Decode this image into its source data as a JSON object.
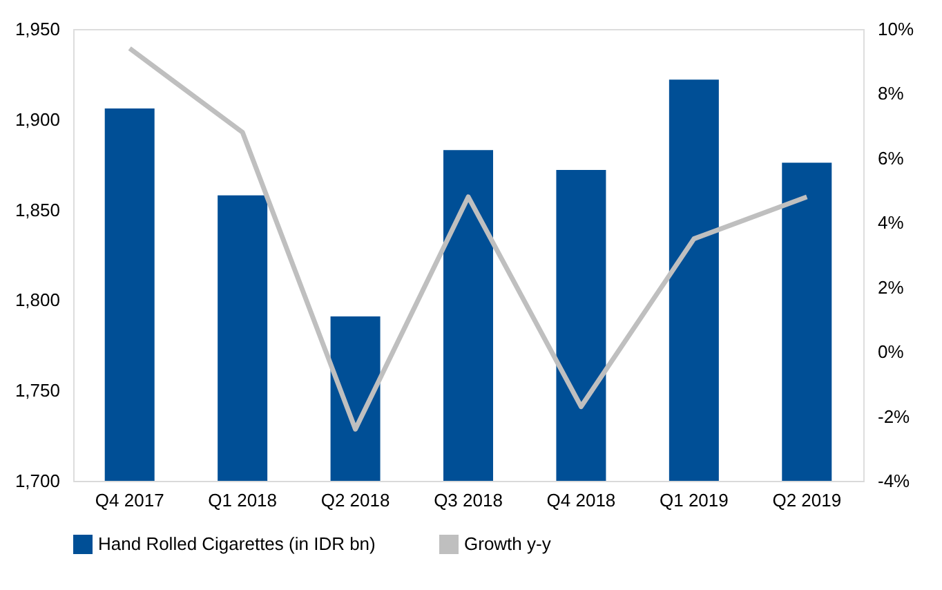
{
  "chart_data": {
    "type": "bar",
    "categories": [
      "Q4 2017",
      "Q1 2018",
      "Q2 2018",
      "Q3 2018",
      "Q4 2018",
      "Q1 2019",
      "Q2 2019"
    ],
    "series": [
      {
        "name": "Hand Rolled Cigarettes (in IDR bn)",
        "color": "#004f96",
        "values": [
          1906,
          1858,
          1791,
          1883,
          1872,
          1922,
          1876
        ]
      },
      {
        "name": "Growth y-y",
        "type": "line",
        "axis": "y2",
        "color": "#bfbfbf",
        "values": [
          9.4,
          6.8,
          -2.4,
          4.8,
          -1.7,
          3.5,
          4.8
        ]
      }
    ],
    "ylim": [
      1700,
      1950
    ],
    "yticks": [
      {
        "value": 1700,
        "label": "1,700"
      },
      {
        "value": 1750,
        "label": "1,750"
      },
      {
        "value": 1800,
        "label": "1,800"
      },
      {
        "value": 1850,
        "label": "1,850"
      },
      {
        "value": 1900,
        "label": "1,900"
      },
      {
        "value": 1950,
        "label": "1,950"
      }
    ],
    "y2lim": [
      -4,
      10
    ],
    "y2ticks": [
      {
        "value": -4,
        "label": "-4%"
      },
      {
        "value": -2,
        "label": "-2%"
      },
      {
        "value": 0,
        "label": "0%"
      },
      {
        "value": 2,
        "label": "2%"
      },
      {
        "value": 4,
        "label": "4%"
      },
      {
        "value": 6,
        "label": "6%"
      },
      {
        "value": 8,
        "label": "8%"
      },
      {
        "value": 10,
        "label": "10%"
      }
    ],
    "grid": false,
    "legend": "bottom"
  }
}
